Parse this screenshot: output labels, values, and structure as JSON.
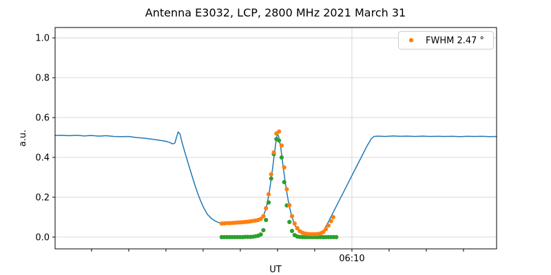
{
  "title": "Antenna E3032, LCP, 2800 MHz 2021 March 31",
  "legend": {
    "label": "FWHM 2.47 °"
  },
  "colors": {
    "line_blue": "#1f77b4",
    "scatter_orange": "#ff7f0e",
    "scatter_green": "#2ca02c",
    "grid": "#cccccc",
    "spine": "#000000",
    "background": "#ffffff"
  },
  "chart_data": {
    "type": "line",
    "title": "Antenna E3032, LCP, 2800 MHz 2021 March 31",
    "xlabel": "UT",
    "ylabel": "a.u.",
    "x_unit": "minutes relative to 06:10 UT (1 minor tick = 1 min)",
    "xlim": [
      -7.98,
      3.89
    ],
    "ylim": [
      -0.059,
      1.052
    ],
    "y_ticks": [
      0.0,
      0.2,
      0.4,
      0.6,
      0.8,
      1.0
    ],
    "x_minor_ticks": [
      -7,
      -6,
      -5,
      -4,
      -3,
      -2,
      -1,
      1,
      2,
      3
    ],
    "x_major_ticks": [
      {
        "t": 0,
        "label": "06:10"
      }
    ],
    "grid": {
      "horizontal": true,
      "vertical_on_major": true
    },
    "legend": {
      "label": "FWHM 2.47 °",
      "position": "upper right",
      "marker": "dot",
      "marker_series": "scatter_orange"
    },
    "series": [
      {
        "name": "line_blue",
        "type": "line",
        "color": "#1f77b4",
        "line_width": 1.5,
        "points": [
          [
            -7.98,
            0.51
          ],
          [
            -7.8,
            0.511
          ],
          [
            -7.6,
            0.509
          ],
          [
            -7.4,
            0.511
          ],
          [
            -7.2,
            0.508
          ],
          [
            -7.0,
            0.51
          ],
          [
            -6.8,
            0.507
          ],
          [
            -6.6,
            0.509
          ],
          [
            -6.4,
            0.505
          ],
          [
            -6.2,
            0.504
          ],
          [
            -6.0,
            0.505
          ],
          [
            -5.8,
            0.5
          ],
          [
            -5.6,
            0.497
          ],
          [
            -5.4,
            0.492
          ],
          [
            -5.2,
            0.487
          ],
          [
            -5.0,
            0.481
          ],
          [
            -4.9,
            0.475
          ],
          [
            -4.82,
            0.468
          ],
          [
            -4.76,
            0.472
          ],
          [
            -4.71,
            0.505
          ],
          [
            -4.67,
            0.528
          ],
          [
            -4.62,
            0.517
          ],
          [
            -4.57,
            0.478
          ],
          [
            -4.5,
            0.432
          ],
          [
            -4.42,
            0.382
          ],
          [
            -4.33,
            0.326
          ],
          [
            -4.24,
            0.272
          ],
          [
            -4.15,
            0.222
          ],
          [
            -4.06,
            0.178
          ],
          [
            -3.97,
            0.142
          ],
          [
            -3.88,
            0.113
          ],
          [
            -3.78,
            0.094
          ],
          [
            -3.68,
            0.081
          ],
          [
            -3.58,
            0.073
          ],
          [
            -3.5,
            0.069
          ],
          [
            -3.3,
            0.071
          ],
          [
            -3.1,
            0.073
          ],
          [
            -2.9,
            0.076
          ],
          [
            -2.7,
            0.079
          ],
          [
            -2.55,
            0.084
          ],
          [
            -2.45,
            0.092
          ],
          [
            -2.37,
            0.11
          ],
          [
            -2.3,
            0.148
          ],
          [
            -2.23,
            0.215
          ],
          [
            -2.16,
            0.305
          ],
          [
            -2.09,
            0.41
          ],
          [
            -2.03,
            0.495
          ],
          [
            -2.0,
            0.52
          ],
          [
            -1.97,
            0.505
          ],
          [
            -1.91,
            0.445
          ],
          [
            -1.85,
            0.355
          ],
          [
            -1.78,
            0.26
          ],
          [
            -1.71,
            0.18
          ],
          [
            -1.64,
            0.12
          ],
          [
            -1.57,
            0.077
          ],
          [
            -1.5,
            0.048
          ],
          [
            -1.43,
            0.031
          ],
          [
            -1.33,
            0.021
          ],
          [
            -1.2,
            0.016
          ],
          [
            -1.05,
            0.015
          ],
          [
            -0.93,
            0.017
          ],
          [
            -0.85,
            0.021
          ],
          [
            -0.76,
            0.032
          ],
          [
            -0.65,
            0.07
          ],
          [
            -0.5,
            0.125
          ],
          [
            -0.35,
            0.18
          ],
          [
            -0.2,
            0.235
          ],
          [
            -0.05,
            0.29
          ],
          [
            0.1,
            0.345
          ],
          [
            0.25,
            0.4
          ],
          [
            0.4,
            0.455
          ],
          [
            0.52,
            0.493
          ],
          [
            0.59,
            0.505
          ],
          [
            0.7,
            0.507
          ],
          [
            0.9,
            0.505
          ],
          [
            1.1,
            0.508
          ],
          [
            1.3,
            0.506
          ],
          [
            1.5,
            0.507
          ],
          [
            1.7,
            0.505
          ],
          [
            1.9,
            0.507
          ],
          [
            2.1,
            0.505
          ],
          [
            2.3,
            0.506
          ],
          [
            2.5,
            0.505
          ],
          [
            2.7,
            0.506
          ],
          [
            2.9,
            0.504
          ],
          [
            3.1,
            0.506
          ],
          [
            3.3,
            0.505
          ],
          [
            3.5,
            0.506
          ],
          [
            3.7,
            0.504
          ],
          [
            3.89,
            0.505
          ]
        ]
      },
      {
        "name": "scatter_green",
        "type": "scatter",
        "color": "#2ca02c",
        "marker_size": 3.1,
        "points": [
          [
            -3.5,
            0.0
          ],
          [
            -3.43,
            0.0
          ],
          [
            -3.36,
            0.0
          ],
          [
            -3.29,
            0.0
          ],
          [
            -3.22,
            0.0
          ],
          [
            -3.15,
            0.0
          ],
          [
            -3.08,
            0.0
          ],
          [
            -3.01,
            0.0
          ],
          [
            -2.94,
            0.0
          ],
          [
            -2.87,
            0.001
          ],
          [
            -2.8,
            0.001
          ],
          [
            -2.73,
            0.001
          ],
          [
            -2.66,
            0.002
          ],
          [
            -2.59,
            0.004
          ],
          [
            -2.52,
            0.007
          ],
          [
            -2.45,
            0.013
          ],
          [
            -2.38,
            0.035
          ],
          [
            -2.31,
            0.086
          ],
          [
            -2.24,
            0.174
          ],
          [
            -2.17,
            0.294
          ],
          [
            -2.1,
            0.416
          ],
          [
            -2.03,
            0.492
          ],
          [
            -1.96,
            0.485
          ],
          [
            -1.89,
            0.4
          ],
          [
            -1.82,
            0.276
          ],
          [
            -1.75,
            0.159
          ],
          [
            -1.68,
            0.076
          ],
          [
            -1.61,
            0.031
          ],
          [
            -1.54,
            0.01
          ],
          [
            -1.47,
            0.003
          ],
          [
            -1.4,
            0.001
          ],
          [
            -1.33,
            0.0
          ],
          [
            -1.26,
            0.0
          ],
          [
            -1.19,
            0.0
          ],
          [
            -1.12,
            0.0
          ],
          [
            -1.05,
            0.0
          ],
          [
            -0.98,
            0.0
          ],
          [
            -0.91,
            0.0
          ],
          [
            -0.84,
            0.0
          ],
          [
            -0.77,
            0.0
          ],
          [
            -0.7,
            0.0
          ],
          [
            -0.63,
            0.0
          ],
          [
            -0.56,
            0.0
          ],
          [
            -0.49,
            0.0
          ],
          [
            -0.42,
            0.0
          ]
        ]
      },
      {
        "name": "scatter_orange",
        "type": "scatter",
        "color": "#ff7f0e",
        "marker_size": 3.1,
        "legend_label": "FWHM 2.47 °",
        "points": [
          [
            -3.5,
            0.068
          ],
          [
            -3.43,
            0.069
          ],
          [
            -3.36,
            0.07
          ],
          [
            -3.29,
            0.07
          ],
          [
            -3.22,
            0.071
          ],
          [
            -3.15,
            0.072
          ],
          [
            -3.08,
            0.073
          ],
          [
            -3.01,
            0.074
          ],
          [
            -2.94,
            0.075
          ],
          [
            -2.87,
            0.076
          ],
          [
            -2.8,
            0.077
          ],
          [
            -2.73,
            0.079
          ],
          [
            -2.66,
            0.081
          ],
          [
            -2.59,
            0.083
          ],
          [
            -2.52,
            0.086
          ],
          [
            -2.45,
            0.091
          ],
          [
            -2.38,
            0.105
          ],
          [
            -2.31,
            0.145
          ],
          [
            -2.24,
            0.215
          ],
          [
            -2.17,
            0.315
          ],
          [
            -2.1,
            0.425
          ],
          [
            -2.03,
            0.52
          ],
          [
            -1.96,
            0.53
          ],
          [
            -1.89,
            0.46
          ],
          [
            -1.82,
            0.35
          ],
          [
            -1.75,
            0.24
          ],
          [
            -1.68,
            0.16
          ],
          [
            -1.61,
            0.105
          ],
          [
            -1.54,
            0.068
          ],
          [
            -1.47,
            0.045
          ],
          [
            -1.4,
            0.03
          ],
          [
            -1.33,
            0.022
          ],
          [
            -1.26,
            0.018
          ],
          [
            -1.19,
            0.016
          ],
          [
            -1.12,
            0.015
          ],
          [
            -1.05,
            0.015
          ],
          [
            -0.98,
            0.015
          ],
          [
            -0.91,
            0.016
          ],
          [
            -0.84,
            0.019
          ],
          [
            -0.77,
            0.026
          ],
          [
            -0.7,
            0.04
          ],
          [
            -0.63,
            0.058
          ],
          [
            -0.56,
            0.08
          ],
          [
            -0.5,
            0.1
          ]
        ]
      }
    ]
  }
}
